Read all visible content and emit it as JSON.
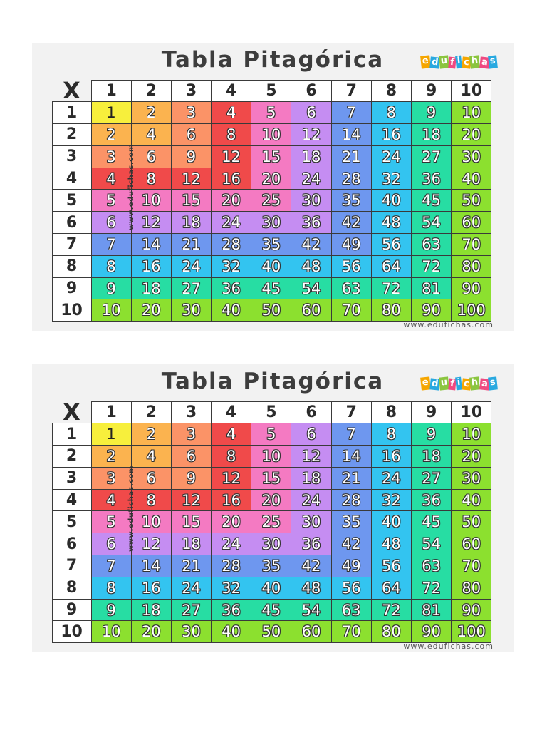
{
  "title": "Tabla Pitagórica",
  "logo": {
    "letters": [
      "e",
      "d",
      "u",
      "f",
      "i",
      "c",
      "h",
      "a",
      "s"
    ],
    "colors": [
      "#f6a600",
      "#29a9e0",
      "#8bc53f",
      "#ef4a81",
      "#29a9e0",
      "#f6a600",
      "#8bc53f",
      "#ef4a81",
      "#29a9e0"
    ]
  },
  "corner": "X",
  "headers": [
    "1",
    "2",
    "3",
    "4",
    "5",
    "6",
    "7",
    "8",
    "9",
    "10"
  ],
  "rows": [
    [
      "1",
      "2",
      "3",
      "4",
      "5",
      "6",
      "7",
      "8",
      "9",
      "10"
    ],
    [
      "2",
      "4",
      "6",
      "8",
      "10",
      "12",
      "14",
      "16",
      "18",
      "20"
    ],
    [
      "3",
      "6",
      "9",
      "12",
      "15",
      "18",
      "21",
      "24",
      "27",
      "30"
    ],
    [
      "4",
      "8",
      "12",
      "16",
      "20",
      "24",
      "28",
      "32",
      "36",
      "40"
    ],
    [
      "5",
      "10",
      "15",
      "20",
      "25",
      "30",
      "35",
      "40",
      "45",
      "50"
    ],
    [
      "6",
      "12",
      "18",
      "24",
      "30",
      "36",
      "42",
      "48",
      "54",
      "60"
    ],
    [
      "7",
      "14",
      "21",
      "28",
      "35",
      "42",
      "49",
      "56",
      "63",
      "70"
    ],
    [
      "8",
      "16",
      "24",
      "32",
      "40",
      "48",
      "56",
      "64",
      "72",
      "80"
    ],
    [
      "9",
      "18",
      "27",
      "36",
      "45",
      "54",
      "63",
      "72",
      "81",
      "90"
    ],
    [
      "10",
      "20",
      "30",
      "40",
      "50",
      "60",
      "70",
      "80",
      "90",
      "100"
    ]
  ],
  "watermark": "www.edufichas.com",
  "footer": "www.edufichas.com",
  "colors": {
    "n1": "#f7ef3c",
    "n2": "#fbb34f",
    "n3": "#fb9367",
    "n4": "#f04a4a",
    "n5": "#f47ac2",
    "n6": "#c58df2",
    "n7": "#6e97ef",
    "n8": "#33c4f0",
    "n9": "#27dda3",
    "n10": "#8ce02f"
  }
}
